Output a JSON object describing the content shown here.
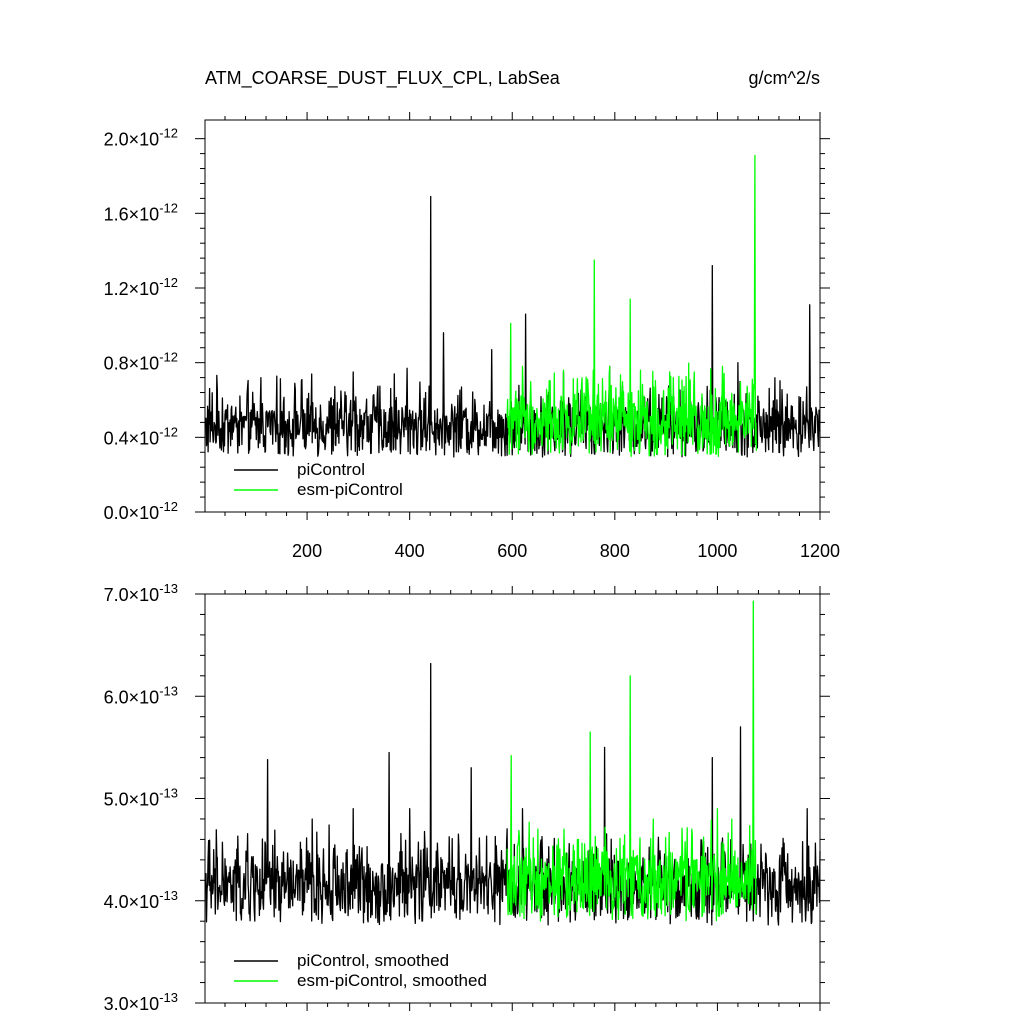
{
  "figure": {
    "title": "ATM_COARSE_DUST_FLUX_CPL, LabSea",
    "units": "g/cm^2/s"
  },
  "chart_data": [
    {
      "type": "line",
      "panel": "top",
      "x_range": [
        1,
        1200
      ],
      "ylim": [
        0.0,
        2.1e-12
      ],
      "x_ticks": [
        200,
        400,
        600,
        800,
        1000,
        1200
      ],
      "y_ticks": [
        {
          "mant": "0.0",
          "exp": "-12",
          "value": 0.0
        },
        {
          "mant": "0.4",
          "exp": "-12",
          "value": 4e-13
        },
        {
          "mant": "0.8",
          "exp": "-12",
          "value": 8e-13
        },
        {
          "mant": "1.2",
          "exp": "-12",
          "value": 1.2e-12
        },
        {
          "mant": "1.6",
          "exp": "-12",
          "value": 1.6e-12
        },
        {
          "mant": "2.0",
          "exp": "-12",
          "value": 2e-12
        }
      ],
      "legend_position": "bottom-left",
      "series": [
        {
          "name": "piControl",
          "color": "#000000",
          "x_start": 1,
          "x_end": 1200,
          "base_mean": 4.2e-13,
          "noise_amp": 1.6e-13,
          "min_value": 2.2e-13,
          "peaks": [
            {
              "x": 25,
              "value": 6.6e-13
            },
            {
              "x": 110,
              "value": 7.2e-13
            },
            {
              "x": 190,
              "value": 7.1e-13
            },
            {
              "x": 290,
              "value": 7.5e-13
            },
            {
              "x": 370,
              "value": 7.4e-13
            },
            {
              "x": 395,
              "value": 7.7e-13
            },
            {
              "x": 441,
              "value": 1.69e-12
            },
            {
              "x": 466,
              "value": 9.6e-13
            },
            {
              "x": 560,
              "value": 8.7e-13
            },
            {
              "x": 626,
              "value": 1.06e-12
            },
            {
              "x": 700,
              "value": 7.5e-13
            },
            {
              "x": 790,
              "value": 7.8e-13
            },
            {
              "x": 990,
              "value": 1.32e-12
            },
            {
              "x": 1040,
              "value": 8e-13
            },
            {
              "x": 1180,
              "value": 1.11e-12
            }
          ]
        },
        {
          "name": "esm-piControl",
          "color": "#00ff00",
          "x_start": 590,
          "x_end": 1076,
          "base_mean": 4.4e-13,
          "noise_amp": 1.8e-13,
          "min_value": 2.3e-13,
          "peaks": [
            {
              "x": 597,
              "value": 1.01e-12
            },
            {
              "x": 620,
              "value": 7.8e-13
            },
            {
              "x": 700,
              "value": 7.6e-13
            },
            {
              "x": 760,
              "value": 1.35e-12
            },
            {
              "x": 790,
              "value": 7.8e-13
            },
            {
              "x": 830,
              "value": 1.14e-12
            },
            {
              "x": 850,
              "value": 7.6e-13
            },
            {
              "x": 955,
              "value": 7.5e-13
            },
            {
              "x": 1010,
              "value": 7.8e-13
            },
            {
              "x": 1073,
              "value": 1.91e-12
            }
          ]
        }
      ]
    },
    {
      "type": "line",
      "panel": "bottom",
      "x_range": [
        1,
        1200
      ],
      "ylim": [
        3e-13,
        7e-13
      ],
      "x_ticks": [
        200,
        400,
        600,
        800,
        1000,
        1200
      ],
      "y_ticks": [
        {
          "mant": "3.0",
          "exp": "-13",
          "value": 3e-13
        },
        {
          "mant": "4.0",
          "exp": "-13",
          "value": 4e-13
        },
        {
          "mant": "5.0",
          "exp": "-13",
          "value": 5e-13
        },
        {
          "mant": "6.0",
          "exp": "-13",
          "value": 6e-13
        },
        {
          "mant": "7.0",
          "exp": "-13",
          "value": 7e-13
        }
      ],
      "legend_position": "bottom-left",
      "series": [
        {
          "name": "piControl, smoothed",
          "color": "#000000",
          "x_start": 1,
          "x_end": 1200,
          "base_mean": 4.05e-13,
          "noise_amp": 3.6e-14,
          "min_value": 3.1e-13,
          "peaks": [
            {
              "x": 18,
              "value": 4.5e-13
            },
            {
              "x": 60,
              "value": 4.4e-13
            },
            {
              "x": 123,
              "value": 5.38e-13
            },
            {
              "x": 210,
              "value": 4.8e-13
            },
            {
              "x": 290,
              "value": 4.9e-13
            },
            {
              "x": 360,
              "value": 5.45e-13
            },
            {
              "x": 400,
              "value": 4.9e-13
            },
            {
              "x": 441,
              "value": 6.32e-13
            },
            {
              "x": 520,
              "value": 5.3e-13
            },
            {
              "x": 620,
              "value": 4.9e-13
            },
            {
              "x": 780,
              "value": 5.5e-13
            },
            {
              "x": 990,
              "value": 5.4e-13
            },
            {
              "x": 1045,
              "value": 5.7e-13
            },
            {
              "x": 1175,
              "value": 4.9e-13
            }
          ]
        },
        {
          "name": "esm-piControl, smoothed",
          "color": "#00ff00",
          "x_start": 590,
          "x_end": 1076,
          "base_mean": 4.1e-13,
          "noise_amp": 3.8e-14,
          "min_value": 3.3e-13,
          "peaks": [
            {
              "x": 598,
              "value": 5.42e-13
            },
            {
              "x": 650,
              "value": 4.7e-13
            },
            {
              "x": 752,
              "value": 5.65e-13
            },
            {
              "x": 830,
              "value": 6.2e-13
            },
            {
              "x": 875,
              "value": 4.8e-13
            },
            {
              "x": 950,
              "value": 4.7e-13
            },
            {
              "x": 1000,
              "value": 4.9e-13
            },
            {
              "x": 1070,
              "value": 6.93e-13
            }
          ]
        }
      ]
    }
  ]
}
